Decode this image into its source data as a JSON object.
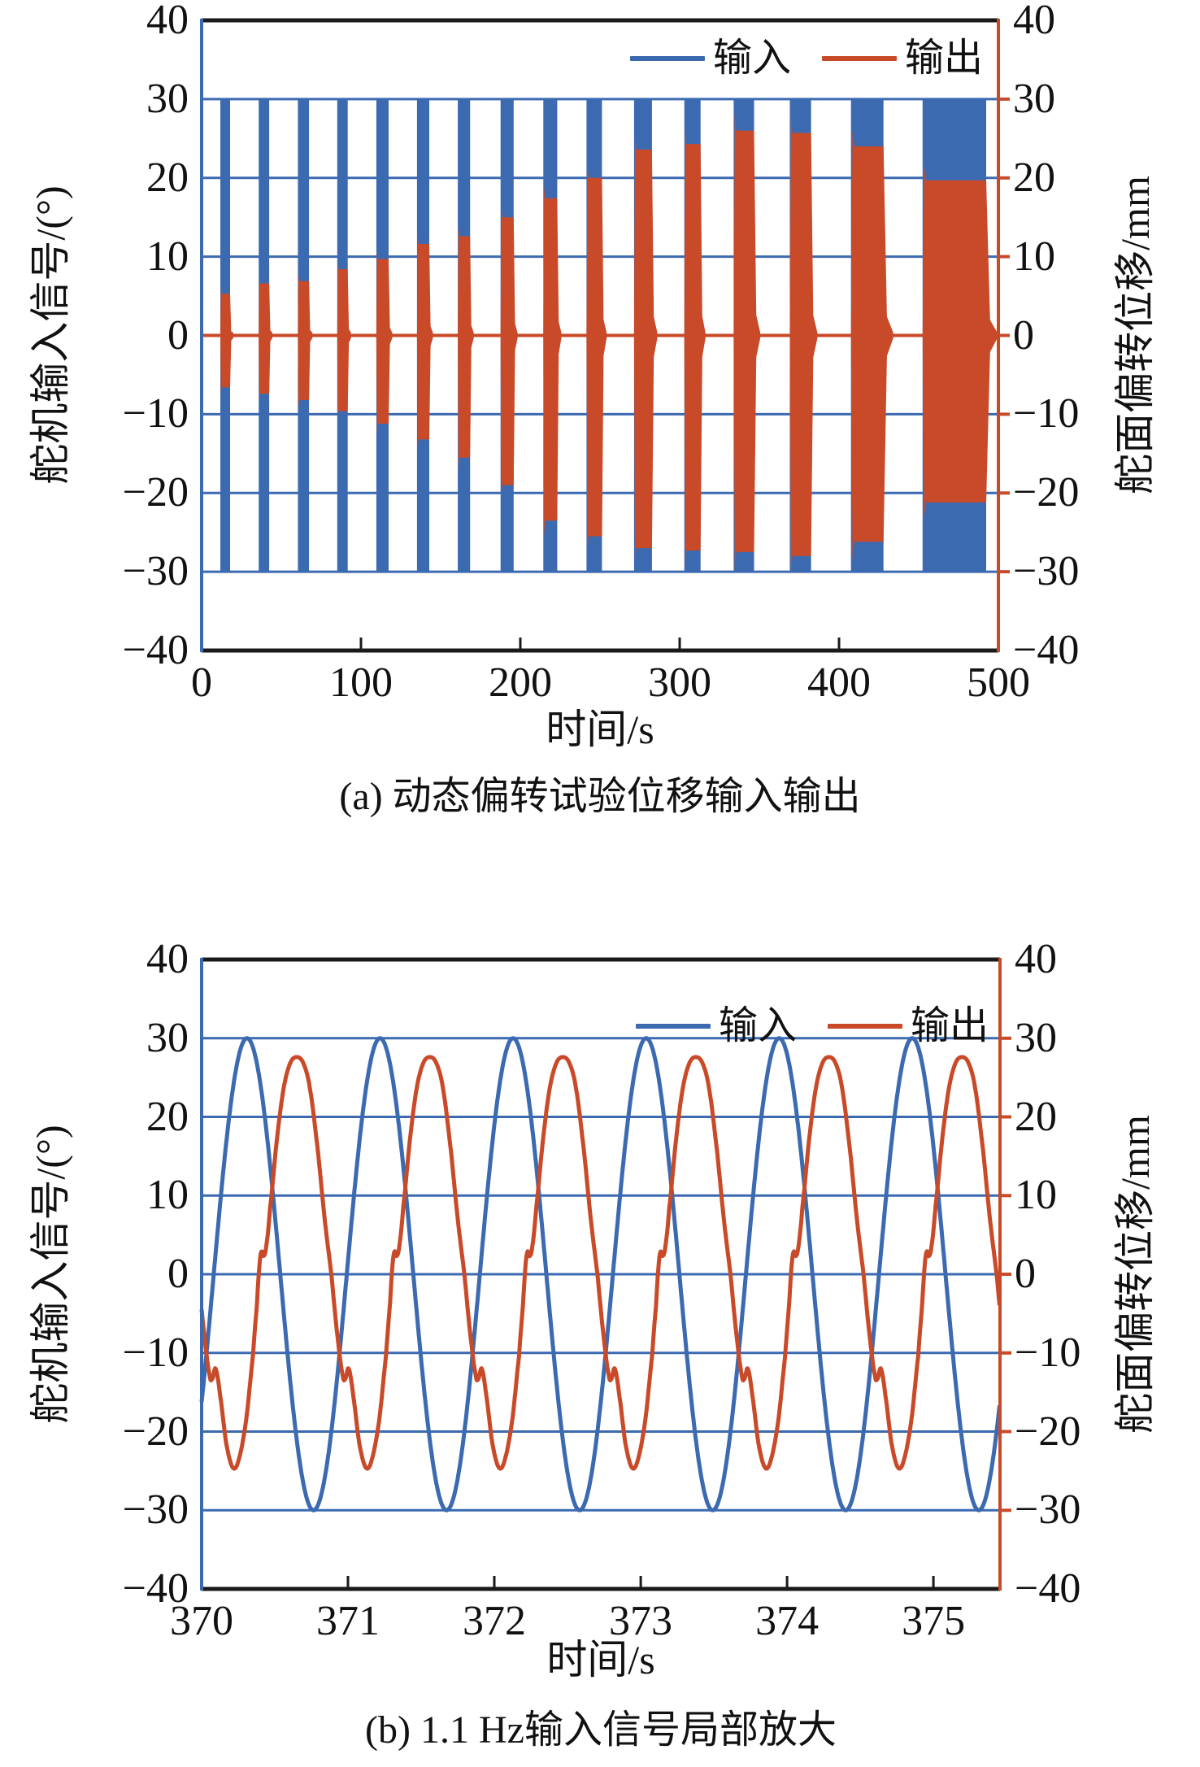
{
  "colors": {
    "input": "#3c6ab1",
    "output": "#c94a28",
    "axis": "#1a1a1a",
    "text": "#000000",
    "background": "#ffffff"
  },
  "charts": [
    {
      "caption": "(a) 动态偏转试验位移输入输出",
      "xlabel": "时间/s",
      "ylabel_left": "舵机输入信号/(°)",
      "ylabel_right": "舵面偏转位移/mm",
      "legend": [
        {
          "label": "输入"
        },
        {
          "label": "输出"
        }
      ]
    },
    {
      "caption": "(b) 1.1 Hz输入信号局部放大",
      "xlabel": "时间/s",
      "ylabel_left": "舵机输入信号/(°)",
      "ylabel_right": "舵面偏转位移/mm",
      "legend": [
        {
          "label": "输入"
        },
        {
          "label": "输出"
        }
      ]
    }
  ],
  "chart_data": [
    {
      "type": "line",
      "title": "(a) 动态偏转试验位移输入输出",
      "xlabel": "时间/s",
      "ylabel_left": "舵机输入信号/(°)",
      "ylabel_right": "舵面偏转位移/mm",
      "xlim": [
        0,
        500
      ],
      "ylim_left": [
        -40,
        40
      ],
      "ylim_right": [
        -40,
        40
      ],
      "xticks": [
        0,
        100,
        200,
        300,
        400,
        500
      ],
      "yticks": [
        40,
        30,
        20,
        10,
        0,
        -10,
        -20,
        -30,
        -40
      ],
      "grid": "horizontal-only",
      "legend": [
        "输入",
        "输出"
      ],
      "legend_position": "inside-top-right",
      "description": "Frequency-sweep test: bursts of sinusoidal input (blue, ±30°) with measured output displacement (red) whose amplitude grows with each burst; output rests at 0 between bursts.",
      "input_burst_amplitude_deg": 30,
      "output_baseline_mm": 0,
      "bursts": [
        {
          "t_center_s": 14.8,
          "width_s": 6.1,
          "output_pos_mm": 5.3,
          "output_neg_mm": -6.6
        },
        {
          "t_center_s": 39.1,
          "width_s": 6.6,
          "output_pos_mm": 6.6,
          "output_neg_mm": -7.4
        },
        {
          "t_center_s": 63.9,
          "width_s": 7.0,
          "output_pos_mm": 6.9,
          "output_neg_mm": -8.2
        },
        {
          "t_center_s": 88.4,
          "width_s": 6.6,
          "output_pos_mm": 8.4,
          "output_neg_mm": -9.6
        },
        {
          "t_center_s": 113.5,
          "width_s": 7.7,
          "output_pos_mm": 9.7,
          "output_neg_mm": -11.2
        },
        {
          "t_center_s": 139.0,
          "width_s": 7.7,
          "output_pos_mm": 11.6,
          "output_neg_mm": -13.2
        },
        {
          "t_center_s": 164.6,
          "width_s": 7.7,
          "output_pos_mm": 12.6,
          "output_neg_mm": -15.5
        },
        {
          "t_center_s": 191.7,
          "width_s": 8.2,
          "output_pos_mm": 15.0,
          "output_neg_mm": -19.0
        },
        {
          "t_center_s": 218.8,
          "width_s": 8.7,
          "output_pos_mm": 17.4,
          "output_neg_mm": -23.5
        },
        {
          "t_center_s": 246.4,
          "width_s": 9.7,
          "output_pos_mm": 20.0,
          "output_neg_mm": -25.5
        },
        {
          "t_center_s": 277.0,
          "width_s": 11.2,
          "output_pos_mm": 23.6,
          "output_neg_mm": -27.0
        },
        {
          "t_center_s": 308.0,
          "width_s": 10.2,
          "output_pos_mm": 24.3,
          "output_neg_mm": -27.3
        },
        {
          "t_center_s": 340.3,
          "width_s": 12.8,
          "output_pos_mm": 26.0,
          "output_neg_mm": -27.5
        },
        {
          "t_center_s": 375.8,
          "width_s": 13.3,
          "output_pos_mm": 25.7,
          "output_neg_mm": -28.0
        },
        {
          "t_center_s": 417.7,
          "width_s": 20.4,
          "output_pos_mm": 24.0,
          "output_neg_mm": -26.2
        },
        {
          "t_center_s": 472.4,
          "width_s": 39.9,
          "output_pos_mm": 19.7,
          "output_neg_mm": -21.2
        }
      ]
    },
    {
      "type": "line",
      "title": "(b) 1.1 Hz输入信号局部放大",
      "xlabel": "时间/s",
      "ylabel_left": "舵机输入信号/(°)",
      "ylabel_right": "舵面偏转位移/mm",
      "xlim": [
        370,
        375.455
      ],
      "ylim_left": [
        -40,
        40
      ],
      "ylim_right": [
        -40,
        40
      ],
      "xticks": [
        370,
        371,
        372,
        373,
        374,
        375
      ],
      "yticks": [
        40,
        30,
        20,
        10,
        0,
        -10,
        -20,
        -30,
        -40
      ],
      "grid": "horizontal-only",
      "legend": [
        "输入",
        "输出"
      ],
      "legend_position": "inside-top-right",
      "series": [
        {
          "name": "输入",
          "color_key": "input",
          "model": "cosine",
          "amplitude": 30,
          "period_s": 0.9091,
          "frequency_hz": 1.1,
          "peak_time_s": 370.31
        },
        {
          "name": "输出",
          "color_key": "output",
          "model": "periodic-spline",
          "period_s": 0.9091,
          "frequency_hz": 1.1,
          "peak_time_s": 370.65,
          "max_mm": 27.6,
          "min_mm": -24.6,
          "phase_lag_s": 0.34,
          "keypoints_phase_value": [
            [
              0.0,
              27.6
            ],
            [
              0.05,
              26.8
            ],
            [
              0.1,
              23.5
            ],
            [
              0.16,
              15.5
            ],
            [
              0.21,
              7.0
            ],
            [
              0.26,
              0.0
            ],
            [
              0.3,
              -7.0
            ],
            [
              0.345,
              -12.8
            ],
            [
              0.365,
              -13.3
            ],
            [
              0.39,
              -12.0
            ],
            [
              0.425,
              -15.5
            ],
            [
              0.47,
              -21.5
            ],
            [
              0.52,
              -24.6
            ],
            [
              0.565,
              -23.5
            ],
            [
              0.62,
              -18.5
            ],
            [
              0.67,
              -10.5
            ],
            [
              0.7,
              -4.0
            ],
            [
              0.72,
              1.2
            ],
            [
              0.735,
              2.9
            ],
            [
              0.75,
              2.3
            ],
            [
              0.77,
              3.5
            ],
            [
              0.8,
              8.5
            ],
            [
              0.85,
              17.0
            ],
            [
              0.9,
              23.5
            ],
            [
              0.95,
              26.8
            ]
          ]
        }
      ]
    }
  ]
}
